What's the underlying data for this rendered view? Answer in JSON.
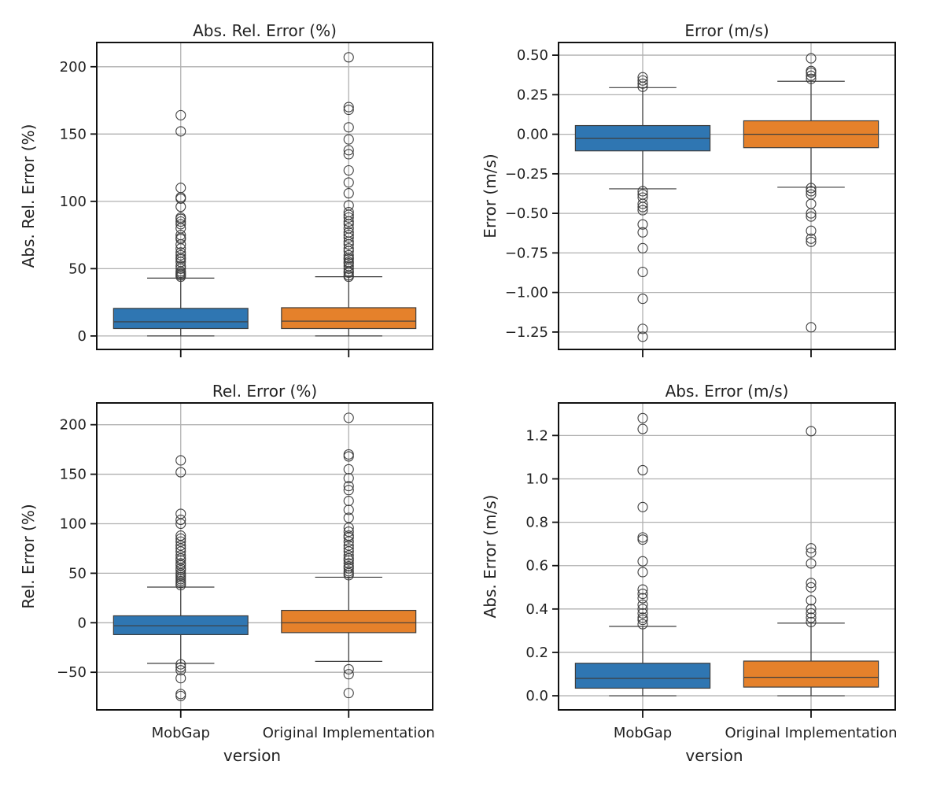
{
  "colors": {
    "series_a": "#2f76b2",
    "series_b": "#e5812b",
    "grid": "#b0b0b0",
    "box_edge": "#3d3d3d"
  },
  "chart_data": [
    {
      "type": "box",
      "title": "Abs. Rel. Error (%)",
      "xlabel": "",
      "ylabel": "Abs. Rel. Error (%)",
      "categories": [
        "MobGap",
        "Original Implementation"
      ],
      "ylim": [
        -10,
        218
      ],
      "yticks": [
        0,
        50,
        100,
        150,
        200
      ],
      "ytick_labels": [
        "0",
        "50",
        "100",
        "150",
        "200"
      ],
      "grid": true,
      "show_xtick_labels": false,
      "boxes": [
        {
          "category": "MobGap",
          "whislo": 0,
          "q1": 5.5,
          "med": 10.5,
          "q3": 20.5,
          "whishi": 43,
          "fliers": [
            44,
            45,
            46,
            47,
            48,
            50,
            52,
            55,
            57,
            58,
            60,
            62,
            65,
            68,
            72,
            73,
            75,
            80,
            83,
            85,
            87,
            88,
            96,
            102,
            103,
            110,
            152,
            164
          ]
        },
        {
          "category": "Original Implementation",
          "whislo": 0,
          "q1": 5.5,
          "med": 11,
          "q3": 21,
          "whishi": 44,
          "fliers": [
            44,
            45,
            47,
            48,
            50,
            52,
            54,
            55,
            57,
            58,
            60,
            63,
            65,
            68,
            70,
            73,
            75,
            77,
            80,
            83,
            85,
            88,
            90,
            92,
            97,
            106,
            114,
            123,
            135,
            138,
            146,
            155,
            168,
            170,
            207
          ]
        }
      ]
    },
    {
      "type": "box",
      "title": "Error (m/s)",
      "xlabel": "",
      "ylabel": "Error (m/s)",
      "categories": [
        "MobGap",
        "Original Implementation"
      ],
      "ylim": [
        -1.36,
        0.58
      ],
      "yticks": [
        0.5,
        0.25,
        0.0,
        -0.25,
        -0.5,
        -0.75,
        -1.0,
        -1.25
      ],
      "ytick_labels": [
        "0.50",
        "0.25",
        "0.00",
        "−0.25",
        "−0.50",
        "−0.75",
        "−1.00",
        "−1.25"
      ],
      "grid": true,
      "show_xtick_labels": false,
      "boxes": [
        {
          "category": "MobGap",
          "whislo": -0.345,
          "q1": -0.105,
          "med": -0.025,
          "q3": 0.055,
          "whishi": 0.295,
          "fliers": [
            0.3,
            0.32,
            0.34,
            0.36,
            -0.36,
            -0.38,
            -0.4,
            -0.44,
            -0.46,
            -0.48,
            -0.57,
            -0.62,
            -0.72,
            -0.87,
            -1.04,
            -1.23,
            -1.28
          ]
        },
        {
          "category": "Original Implementation",
          "whislo": -0.335,
          "q1": -0.085,
          "med": 0.0,
          "q3": 0.085,
          "whishi": 0.335,
          "fliers": [
            0.35,
            0.37,
            0.39,
            0.4,
            0.48,
            -0.34,
            -0.36,
            -0.38,
            -0.44,
            -0.5,
            -0.52,
            -0.61,
            -0.66,
            -0.68,
            -1.22
          ]
        }
      ]
    },
    {
      "type": "box",
      "title": "Rel. Error (%)",
      "xlabel": "version",
      "ylabel": "Rel. Error (%)",
      "categories": [
        "MobGap",
        "Original Implementation"
      ],
      "ylim": [
        -88,
        222
      ],
      "yticks": [
        200,
        150,
        100,
        50,
        0,
        -50
      ],
      "ytick_labels": [
        "200",
        "150",
        "100",
        "50",
        "0",
        "−50"
      ],
      "grid": true,
      "show_xtick_labels": true,
      "boxes": [
        {
          "category": "MobGap",
          "whislo": -41,
          "q1": -12,
          "med": -3,
          "q3": 7,
          "whishi": 36,
          "fliers": [
            38,
            40,
            42,
            44,
            46,
            48,
            50,
            53,
            55,
            58,
            60,
            63,
            65,
            68,
            72,
            75,
            78,
            82,
            85,
            88,
            100,
            104,
            110,
            152,
            164,
            -42,
            -45,
            -48,
            -56,
            -72,
            -74
          ]
        },
        {
          "category": "Original Implementation",
          "whislo": -39,
          "q1": -10,
          "med": 0,
          "q3": 12.5,
          "whishi": 46,
          "fliers": [
            48,
            50,
            52,
            55,
            57,
            60,
            63,
            65,
            68,
            72,
            75,
            78,
            82,
            86,
            88,
            92,
            96,
            106,
            114,
            123,
            134,
            138,
            146,
            155,
            168,
            170,
            207,
            -47,
            -52,
            -71
          ]
        }
      ]
    },
    {
      "type": "box",
      "title": "Abs. Error (m/s)",
      "xlabel": "version",
      "ylabel": "Abs. Error (m/s)",
      "categories": [
        "MobGap",
        "Original Implementation"
      ],
      "ylim": [
        -0.065,
        1.35
      ],
      "yticks": [
        0.0,
        0.2,
        0.4,
        0.6,
        0.8,
        1.0,
        1.2
      ],
      "ytick_labels": [
        "0.0",
        "0.2",
        "0.4",
        "0.6",
        "0.8",
        "1.0",
        "1.2"
      ],
      "grid": true,
      "show_xtick_labels": true,
      "boxes": [
        {
          "category": "MobGap",
          "whislo": 0,
          "q1": 0.035,
          "med": 0.08,
          "q3": 0.15,
          "whishi": 0.32,
          "fliers": [
            0.33,
            0.35,
            0.36,
            0.38,
            0.4,
            0.42,
            0.45,
            0.47,
            0.49,
            0.57,
            0.62,
            0.72,
            0.73,
            0.87,
            1.04,
            1.23,
            1.28
          ]
        },
        {
          "category": "Original Implementation",
          "whislo": 0,
          "q1": 0.04,
          "med": 0.085,
          "q3": 0.16,
          "whishi": 0.335,
          "fliers": [
            0.34,
            0.36,
            0.38,
            0.4,
            0.44,
            0.5,
            0.52,
            0.61,
            0.66,
            0.68,
            1.22
          ]
        }
      ]
    }
  ]
}
